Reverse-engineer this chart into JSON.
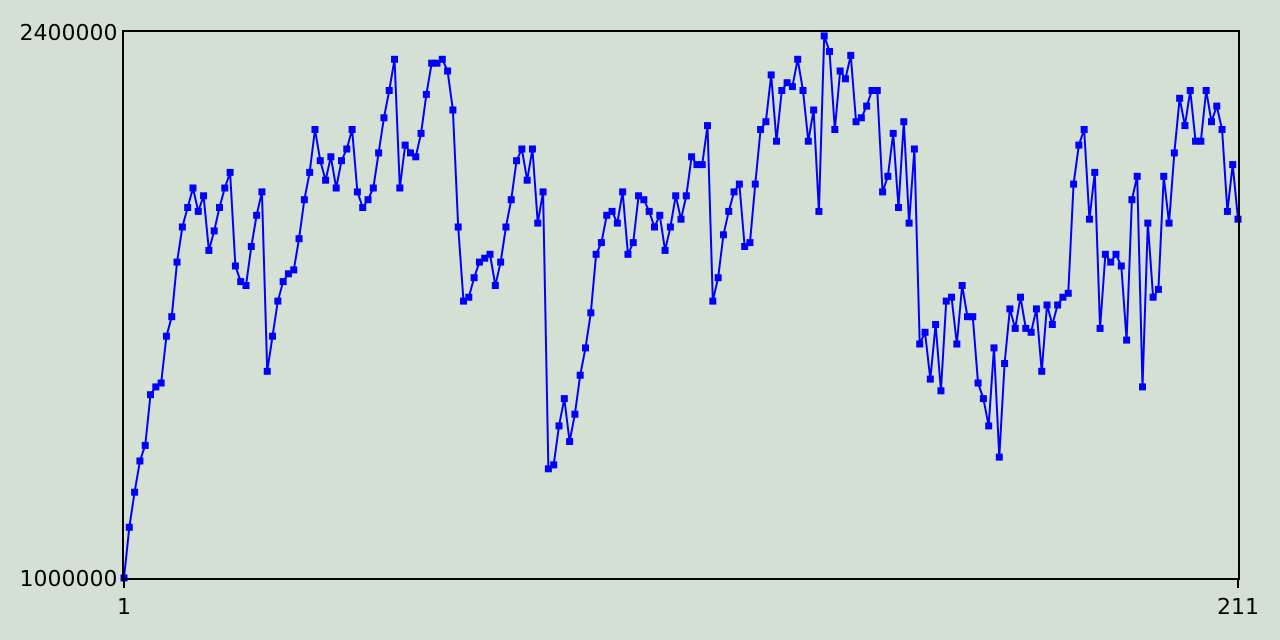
{
  "chart_data": {
    "type": "line",
    "x": [
      1,
      2,
      3,
      4,
      5,
      6,
      7,
      8,
      9,
      10,
      11,
      12,
      13,
      14,
      15,
      16,
      17,
      18,
      19,
      20,
      21,
      22,
      23,
      24,
      25,
      26,
      27,
      28,
      29,
      30,
      31,
      32,
      33,
      34,
      35,
      36,
      37,
      38,
      39,
      40,
      41,
      42,
      43,
      44,
      45,
      46,
      47,
      48,
      49,
      50,
      51,
      52,
      53,
      54,
      55,
      56,
      57,
      58,
      59,
      60,
      61,
      62,
      63,
      64,
      65,
      66,
      67,
      68,
      69,
      70,
      71,
      72,
      73,
      74,
      75,
      76,
      77,
      78,
      79,
      80,
      81,
      82,
      83,
      84,
      85,
      86,
      87,
      88,
      89,
      90,
      91,
      92,
      93,
      94,
      95,
      96,
      97,
      98,
      99,
      100,
      101,
      102,
      103,
      104,
      105,
      106,
      107,
      108,
      109,
      110,
      111,
      112,
      113,
      114,
      115,
      116,
      117,
      118,
      119,
      120,
      121,
      122,
      123,
      124,
      125,
      126,
      127,
      128,
      129,
      130,
      131,
      132,
      133,
      134,
      135,
      136,
      137,
      138,
      139,
      140,
      141,
      142,
      143,
      144,
      145,
      146,
      147,
      148,
      149,
      150,
      151,
      152,
      153,
      154,
      155,
      156,
      157,
      158,
      159,
      160,
      161,
      162,
      163,
      164,
      165,
      166,
      167,
      168,
      169,
      170,
      171,
      172,
      173,
      174,
      175,
      176,
      177,
      178,
      179,
      180,
      181,
      182,
      183,
      184,
      185,
      186,
      187,
      188,
      189,
      190,
      191,
      192,
      193,
      194,
      195,
      196,
      197,
      198,
      199,
      200,
      201,
      202,
      203,
      204,
      205,
      206,
      207,
      208,
      209,
      210,
      211
    ],
    "series": [
      {
        "color": "#0000ff",
        "values": [
          1000000,
          1130000,
          1220000,
          1300000,
          1340000,
          1470000,
          1490000,
          1500000,
          1620000,
          1670000,
          1810000,
          1900000,
          1950000,
          2000000,
          1940000,
          1980000,
          1840000,
          1890000,
          1950000,
          2000000,
          2040000,
          1800000,
          1760000,
          1750000,
          1850000,
          1930000,
          1990000,
          1530000,
          1620000,
          1710000,
          1760000,
          1780000,
          1790000,
          1870000,
          1970000,
          2040000,
          2150000,
          2070000,
          2020000,
          2080000,
          2000000,
          2070000,
          2100000,
          2150000,
          1990000,
          1950000,
          1970000,
          2000000,
          2090000,
          2180000,
          2250000,
          2330000,
          2000000,
          2110000,
          2090000,
          2080000,
          2140000,
          2240000,
          2320000,
          2320000,
          2330000,
          2300000,
          2200000,
          1900000,
          1710000,
          1720000,
          1770000,
          1810000,
          1820000,
          1830000,
          1750000,
          1810000,
          1900000,
          1970000,
          2070000,
          2100000,
          2020000,
          2100000,
          1910000,
          1990000,
          1280000,
          1290000,
          1390000,
          1460000,
          1350000,
          1420000,
          1520000,
          1590000,
          1680000,
          1830000,
          1860000,
          1930000,
          1940000,
          1910000,
          1990000,
          1830000,
          1860000,
          1980000,
          1970000,
          1940000,
          1900000,
          1930000,
          1840000,
          1900000,
          1980000,
          1920000,
          1980000,
          2080000,
          2060000,
          2060000,
          2160000,
          1710000,
          1770000,
          1880000,
          1940000,
          1990000,
          2010000,
          1850000,
          1860000,
          2010000,
          2150000,
          2170000,
          2290000,
          2120000,
          2250000,
          2270000,
          2260000,
          2330000,
          2250000,
          2120000,
          2200000,
          1940000,
          2390000,
          2350000,
          2150000,
          2300000,
          2280000,
          2340000,
          2170000,
          2180000,
          2210000,
          2250000,
          2250000,
          1990000,
          2030000,
          2140000,
          1950000,
          2170000,
          1910000,
          2100000,
          1600000,
          1630000,
          1510000,
          1650000,
          1480000,
          1710000,
          1720000,
          1600000,
          1750000,
          1670000,
          1670000,
          1500000,
          1460000,
          1390000,
          1590000,
          1310000,
          1550000,
          1690000,
          1640000,
          1720000,
          1640000,
          1630000,
          1690000,
          1530000,
          1700000,
          1650000,
          1700000,
          1720000,
          1730000,
          2010000,
          2110000,
          2150000,
          1920000,
          2040000,
          1640000,
          1830000,
          1810000,
          1830000,
          1800000,
          1610000,
          1970000,
          2030000,
          1490000,
          1910000,
          1720000,
          1740000,
          2030000,
          1910000,
          2090000,
          2230000,
          2160000,
          2250000,
          2120000,
          2120000,
          2250000,
          2170000,
          2210000,
          2150000,
          1940000,
          2060000,
          1920000
        ]
      }
    ],
    "xlim": [
      1,
      211
    ],
    "xticks": [
      1,
      211
    ],
    "ylim": [
      1000000,
      2400000
    ],
    "yticks": [
      1000000,
      2400000
    ],
    "marker": "square",
    "line_style": "solid"
  }
}
